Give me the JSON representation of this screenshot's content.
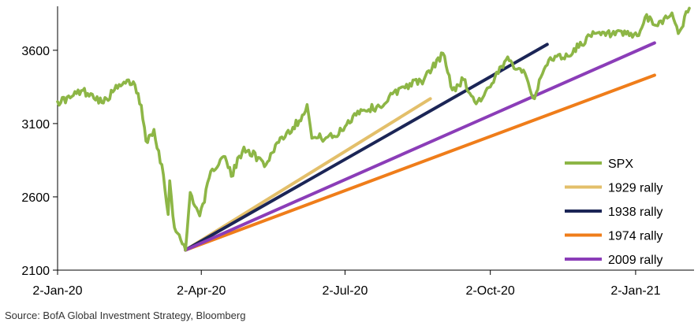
{
  "chart_data": {
    "type": "line",
    "x_type": "date",
    "xlim": [
      "2020-01-02",
      "2021-02-08"
    ],
    "ylim": [
      2100,
      3900
    ],
    "y_ticks": [
      2100,
      2600,
      3100,
      3600
    ],
    "x_ticks": [
      {
        "date": "2020-01-02",
        "label": "2-Jan-20"
      },
      {
        "date": "2020-04-02",
        "label": "2-Apr-20"
      },
      {
        "date": "2020-07-02",
        "label": "2-Jul-20"
      },
      {
        "date": "2020-10-02",
        "label": "2-Oct-20"
      },
      {
        "date": "2021-01-02",
        "label": "2-Jan-21"
      }
    ],
    "legend_position": "bottom-right",
    "series": [
      {
        "name": "SPX",
        "color": "#8DB646",
        "style": "noisy",
        "points": [
          [
            "2020-01-02",
            3250
          ],
          [
            "2020-01-10",
            3275
          ],
          [
            "2020-01-17",
            3325
          ],
          [
            "2020-01-24",
            3300
          ],
          [
            "2020-01-31",
            3240
          ],
          [
            "2020-02-07",
            3330
          ],
          [
            "2020-02-14",
            3375
          ],
          [
            "2020-02-19",
            3385
          ],
          [
            "2020-02-24",
            3225
          ],
          [
            "2020-02-27",
            2980
          ],
          [
            "2020-03-03",
            3060
          ],
          [
            "2020-03-09",
            2750
          ],
          [
            "2020-03-12",
            2480
          ],
          [
            "2020-03-13",
            2710
          ],
          [
            "2020-03-16",
            2390
          ],
          [
            "2020-03-20",
            2305
          ],
          [
            "2020-03-23",
            2237
          ],
          [
            "2020-03-26",
            2630
          ],
          [
            "2020-04-01",
            2470
          ],
          [
            "2020-04-09",
            2790
          ],
          [
            "2020-04-17",
            2875
          ],
          [
            "2020-04-21",
            2740
          ],
          [
            "2020-04-29",
            2940
          ],
          [
            "2020-05-13",
            2820
          ],
          [
            "2020-05-20",
            2970
          ],
          [
            "2020-06-03",
            3120
          ],
          [
            "2020-06-08",
            3230
          ],
          [
            "2020-06-11",
            3000
          ],
          [
            "2020-06-26",
            3010
          ],
          [
            "2020-07-10",
            3185
          ],
          [
            "2020-07-24",
            3215
          ],
          [
            "2020-08-07",
            3350
          ],
          [
            "2020-08-21",
            3400
          ],
          [
            "2020-09-02",
            3580
          ],
          [
            "2020-09-08",
            3330
          ],
          [
            "2020-09-15",
            3400
          ],
          [
            "2020-09-23",
            3235
          ],
          [
            "2020-10-02",
            3350
          ],
          [
            "2020-10-12",
            3535
          ],
          [
            "2020-10-23",
            3465
          ],
          [
            "2020-10-30",
            3270
          ],
          [
            "2020-11-04",
            3440
          ],
          [
            "2020-11-09",
            3550
          ],
          [
            "2020-11-20",
            3560
          ],
          [
            "2020-12-04",
            3700
          ],
          [
            "2020-12-18",
            3710
          ],
          [
            "2021-01-04",
            3700
          ],
          [
            "2021-01-08",
            3825
          ],
          [
            "2021-01-15",
            3770
          ],
          [
            "2021-01-25",
            3855
          ],
          [
            "2021-01-29",
            3714
          ],
          [
            "2021-02-05",
            3887
          ]
        ]
      },
      {
        "name": "1929 rally",
        "color": "#E3BF6A",
        "style": "straight",
        "points": [
          [
            "2020-03-23",
            2237
          ],
          [
            "2020-08-25",
            3270
          ]
        ]
      },
      {
        "name": "1938 rally",
        "color": "#1B2556",
        "style": "straight",
        "points": [
          [
            "2020-03-23",
            2237
          ],
          [
            "2020-11-07",
            3640
          ]
        ]
      },
      {
        "name": "1974 rally",
        "color": "#EF7D1A",
        "style": "straight",
        "points": [
          [
            "2020-03-23",
            2237
          ],
          [
            "2021-01-14",
            3430
          ]
        ]
      },
      {
        "name": "2009 rally",
        "color": "#8B3DB8",
        "style": "straight",
        "points": [
          [
            "2020-03-23",
            2237
          ],
          [
            "2021-01-14",
            3650
          ]
        ]
      }
    ]
  },
  "source": "Source: BofA Global Investment Strategy, Bloomberg"
}
